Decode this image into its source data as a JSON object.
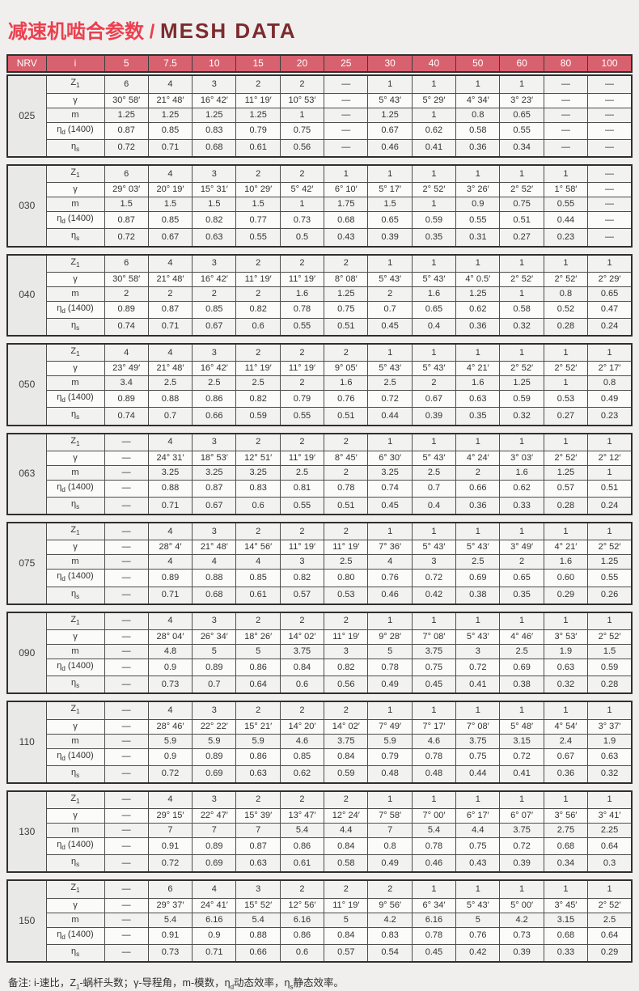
{
  "title": {
    "zh": "减速机啮合参数 / ",
    "en": "MESH DATA"
  },
  "table_header": {
    "col1": "NRV",
    "col2": "i",
    "ratios": [
      "5",
      "7.5",
      "10",
      "15",
      "20",
      "25",
      "30",
      "40",
      "50",
      "60",
      "80",
      "100"
    ]
  },
  "row_labels": [
    {
      "pre": "Z",
      "sub": "1",
      "post": ""
    },
    {
      "pre": "γ",
      "sub": "",
      "post": ""
    },
    {
      "pre": "m",
      "sub": "",
      "post": ""
    },
    {
      "pre": "η",
      "sub": "d",
      "post": " (1400)"
    },
    {
      "pre": "η",
      "sub": "s",
      "post": ""
    }
  ],
  "blocks": [
    {
      "model": "025",
      "rows": [
        [
          "6",
          "4",
          "3",
          "2",
          "2",
          "—",
          "1",
          "1",
          "1",
          "1",
          "—",
          "—"
        ],
        [
          "30° 58′",
          "21° 48′",
          "16° 42′",
          "11° 19′",
          "10° 53′",
          "—",
          "5° 43′",
          "5° 29′",
          "4° 34′",
          "3° 23′",
          "—",
          "—"
        ],
        [
          "1.25",
          "1.25",
          "1.25",
          "1.25",
          "1",
          "—",
          "1.25",
          "1",
          "0.8",
          "0.65",
          "—",
          "—"
        ],
        [
          "0.87",
          "0.85",
          "0.83",
          "0.79",
          "0.75",
          "—",
          "0.67",
          "0.62",
          "0.58",
          "0.55",
          "—",
          "—"
        ],
        [
          "0.72",
          "0.71",
          "0.68",
          "0.61",
          "0.56",
          "—",
          "0.46",
          "0.41",
          "0.36",
          "0.34",
          "—",
          "—"
        ]
      ]
    },
    {
      "model": "030",
      "rows": [
        [
          "6",
          "4",
          "3",
          "2",
          "2",
          "1",
          "1",
          "1",
          "1",
          "1",
          "1",
          "—"
        ],
        [
          "29° 03′",
          "20° 19′",
          "15° 31′",
          "10° 29′",
          "5° 42′",
          "6° 10′",
          "5° 17′",
          "2° 52′",
          "3° 26′",
          "2° 52′",
          "1° 58′",
          "—"
        ],
        [
          "1.5",
          "1.5",
          "1.5",
          "1.5",
          "1",
          "1.75",
          "1.5",
          "1",
          "0.9",
          "0.75",
          "0.55",
          "—"
        ],
        [
          "0.87",
          "0.85",
          "0.82",
          "0.77",
          "0.73",
          "0.68",
          "0.65",
          "0.59",
          "0.55",
          "0.51",
          "0.44",
          "—"
        ],
        [
          "0.72",
          "0.67",
          "0.63",
          "0.55",
          "0.5",
          "0.43",
          "0.39",
          "0.35",
          "0.31",
          "0.27",
          "0.23",
          "—"
        ]
      ]
    },
    {
      "model": "040",
      "rows": [
        [
          "6",
          "4",
          "3",
          "2",
          "2",
          "2",
          "1",
          "1",
          "1",
          "1",
          "1",
          "1"
        ],
        [
          "30° 58′",
          "21° 48′",
          "16° 42′",
          "11° 19′",
          "11° 19′",
          "8° 08′",
          "5° 43′",
          "5° 43′",
          "4° 0.5′",
          "2° 52′",
          "2° 52′",
          "2° 29′"
        ],
        [
          "2",
          "2",
          "2",
          "2",
          "1.6",
          "1.25",
          "2",
          "1.6",
          "1.25",
          "1",
          "0.8",
          "0.65"
        ],
        [
          "0.89",
          "0.87",
          "0.85",
          "0.82",
          "0.78",
          "0.75",
          "0.7",
          "0.65",
          "0.62",
          "0.58",
          "0.52",
          "0.47"
        ],
        [
          "0.74",
          "0.71",
          "0.67",
          "0.6",
          "0.55",
          "0.51",
          "0.45",
          "0.4",
          "0.36",
          "0.32",
          "0.28",
          "0.24"
        ]
      ]
    },
    {
      "model": "050",
      "rows": [
        [
          "4",
          "4",
          "3",
          "2",
          "2",
          "2",
          "1",
          "1",
          "1",
          "1",
          "1",
          "1"
        ],
        [
          "23° 49′",
          "21° 48′",
          "16° 42′",
          "11° 19′",
          "11° 19′",
          "9° 05′",
          "5° 43′",
          "5° 43′",
          "4° 21′",
          "2° 52′",
          "2° 52′",
          "2° 17′"
        ],
        [
          "3.4",
          "2.5",
          "2.5",
          "2.5",
          "2",
          "1.6",
          "2.5",
          "2",
          "1.6",
          "1.25",
          "1",
          "0.8"
        ],
        [
          "0.89",
          "0.88",
          "0.86",
          "0.82",
          "0.79",
          "0.76",
          "0.72",
          "0.67",
          "0.63",
          "0.59",
          "0.53",
          "0.49"
        ],
        [
          "0.74",
          "0.7",
          "0.66",
          "0.59",
          "0.55",
          "0.51",
          "0.44",
          "0.39",
          "0.35",
          "0.32",
          "0.27",
          "0.23"
        ]
      ]
    },
    {
      "model": "063",
      "rows": [
        [
          "—",
          "4",
          "3",
          "2",
          "2",
          "2",
          "1",
          "1",
          "1",
          "1",
          "1",
          "1"
        ],
        [
          "—",
          "24° 31′",
          "18° 53′",
          "12° 51′",
          "11° 19′",
          "8° 45′",
          "6° 30′",
          "5° 43′",
          "4° 24′",
          "3° 03′",
          "2° 52′",
          "2° 12′"
        ],
        [
          "—",
          "3.25",
          "3.25",
          "3.25",
          "2.5",
          "2",
          "3.25",
          "2.5",
          "2",
          "1.6",
          "1.25",
          "1"
        ],
        [
          "—",
          "0.88",
          "0.87",
          "0.83",
          "0.81",
          "0.78",
          "0.74",
          "0.7",
          "0.66",
          "0.62",
          "0.57",
          "0.51"
        ],
        [
          "—",
          "0.71",
          "0.67",
          "0.6",
          "0.55",
          "0.51",
          "0.45",
          "0.4",
          "0.36",
          "0.33",
          "0.28",
          "0.24"
        ]
      ]
    },
    {
      "model": "075",
      "rows": [
        [
          "—",
          "4",
          "3",
          "2",
          "2",
          "2",
          "1",
          "1",
          "1",
          "1",
          "1",
          "1"
        ],
        [
          "—",
          "28° 4′",
          "21° 48′",
          "14° 56′",
          "11° 19′",
          "11° 19′",
          "7° 36′",
          "5° 43′",
          "5° 43′",
          "3° 49′",
          "4° 21′",
          "2° 52′"
        ],
        [
          "—",
          "4",
          "4",
          "4",
          "3",
          "2.5",
          "4",
          "3",
          "2.5",
          "2",
          "1.6",
          "1.25"
        ],
        [
          "—",
          "0.89",
          "0.88",
          "0.85",
          "0.82",
          "0.80",
          "0.76",
          "0.72",
          "0.69",
          "0.65",
          "0.60",
          "0.55"
        ],
        [
          "—",
          "0.71",
          "0.68",
          "0.61",
          "0.57",
          "0.53",
          "0.46",
          "0.42",
          "0.38",
          "0.35",
          "0.29",
          "0.26"
        ]
      ]
    },
    {
      "model": "090",
      "rows": [
        [
          "—",
          "4",
          "3",
          "2",
          "2",
          "2",
          "1",
          "1",
          "1",
          "1",
          "1",
          "1"
        ],
        [
          "—",
          "28° 04′",
          "26° 34′",
          "18° 26′",
          "14° 02′",
          "11° 19′",
          "9° 28′",
          "7° 08′",
          "5° 43′",
          "4° 46′",
          "3° 53′",
          "2° 52′"
        ],
        [
          "—",
          "4.8",
          "5",
          "5",
          "3.75",
          "3",
          "5",
          "3.75",
          "3",
          "2.5",
          "1.9",
          "1.5"
        ],
        [
          "—",
          "0.9",
          "0.89",
          "0.86",
          "0.84",
          "0.82",
          "0.78",
          "0.75",
          "0.72",
          "0.69",
          "0.63",
          "0.59"
        ],
        [
          "—",
          "0.73",
          "0.7",
          "0.64",
          "0.6",
          "0.56",
          "0.49",
          "0.45",
          "0.41",
          "0.38",
          "0.32",
          "0.28"
        ]
      ]
    },
    {
      "model": "110",
      "rows": [
        [
          "—",
          "4",
          "3",
          "2",
          "2",
          "2",
          "1",
          "1",
          "1",
          "1",
          "1",
          "1"
        ],
        [
          "—",
          "28° 46′",
          "22° 22′",
          "15° 21′",
          "14° 20′",
          "14° 02′",
          "7° 49′",
          "7° 17′",
          "7° 08′",
          "5° 48′",
          "4° 54′",
          "3° 37′"
        ],
        [
          "—",
          "5.9",
          "5.9",
          "5.9",
          "4.6",
          "3.75",
          "5.9",
          "4.6",
          "3.75",
          "3.15",
          "2.4",
          "1.9"
        ],
        [
          "—",
          "0.9",
          "0.89",
          "0.86",
          "0.85",
          "0.84",
          "0.79",
          "0.78",
          "0.75",
          "0.72",
          "0.67",
          "0.63"
        ],
        [
          "—",
          "0.72",
          "0.69",
          "0.63",
          "0.62",
          "0.59",
          "0.48",
          "0.48",
          "0.44",
          "0.41",
          "0.36",
          "0.32"
        ]
      ]
    },
    {
      "model": "130",
      "rows": [
        [
          "—",
          "4",
          "3",
          "2",
          "2",
          "2",
          "1",
          "1",
          "1",
          "1",
          "1",
          "1"
        ],
        [
          "—",
          "29° 15′",
          "22° 47′",
          "15° 39′",
          "13° 47′",
          "12° 24′",
          "7° 58′",
          "7° 00′",
          "6° 17′",
          "6° 07′",
          "3° 56′",
          "3° 41′"
        ],
        [
          "—",
          "7",
          "7",
          "7",
          "5.4",
          "4.4",
          "7",
          "5.4",
          "4.4",
          "3.75",
          "2.75",
          "2.25"
        ],
        [
          "—",
          "0.91",
          "0.89",
          "0.87",
          "0.86",
          "0.84",
          "0.8",
          "0.78",
          "0.75",
          "0.72",
          "0.68",
          "0.64"
        ],
        [
          "—",
          "0.72",
          "0.69",
          "0.63",
          "0.61",
          "0.58",
          "0.49",
          "0.46",
          "0.43",
          "0.39",
          "0.34",
          "0.3"
        ]
      ]
    },
    {
      "model": "150",
      "rows": [
        [
          "—",
          "6",
          "4",
          "3",
          "2",
          "2",
          "2",
          "1",
          "1",
          "1",
          "1",
          "1"
        ],
        [
          "—",
          "29° 37′",
          "24° 41′",
          "15° 52′",
          "12° 56′",
          "11° 19′",
          "9° 56′",
          "6° 34′",
          "5° 43′",
          "5° 00′",
          "3° 45′",
          "2° 52′"
        ],
        [
          "—",
          "5.4",
          "6.16",
          "5.4",
          "6.16",
          "5",
          "4.2",
          "6.16",
          "5",
          "4.2",
          "3.15",
          "2.5"
        ],
        [
          "—",
          "0.91",
          "0.9",
          "0.88",
          "0.86",
          "0.84",
          "0.83",
          "0.78",
          "0.76",
          "0.73",
          "0.68",
          "0.64"
        ],
        [
          "—",
          "0.73",
          "0.71",
          "0.66",
          "0.6",
          "0.57",
          "0.54",
          "0.45",
          "0.42",
          "0.39",
          "0.33",
          "0.29"
        ]
      ]
    },
    {
      "model": "",
      "rows": []
    }
  ],
  "footnote": [
    {
      "t": "备注: i-速比，Z"
    },
    {
      "s": "1"
    },
    {
      "t": "-蜗杆头数；γ-导程角，m-模数，η"
    },
    {
      "s": "d"
    },
    {
      "t": "动态效率，η"
    },
    {
      "s": "s"
    },
    {
      "t": "静态效率。"
    }
  ],
  "colors": {
    "header_bg": "#d8616f",
    "header_text": "#ffffff",
    "title_zh": "#ec3f4e",
    "title_en": "#7c2b2e",
    "border": "#4e4e4e",
    "model_cell_bg": "#e9e9e8",
    "row_odd_bg": "#f2f2f1",
    "row_even_bg": "#fbfbfa",
    "page_bg": "#f0efee"
  }
}
